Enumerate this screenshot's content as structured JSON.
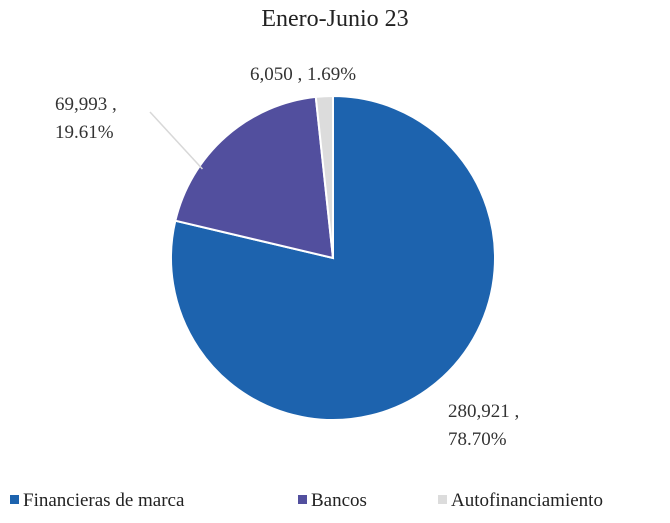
{
  "chart_data": {
    "type": "pie",
    "title": "Enero-Junio 23",
    "categories": [
      "Financieras de marca",
      "Bancos",
      "Autofinanciamiento"
    ],
    "values": [
      280921,
      69993,
      6050
    ],
    "value_labels": [
      "280,921 , 78.70%",
      "69,993 , 19.61%",
      "6,050 , 1.69%"
    ],
    "colors": [
      "#1d63ae",
      "#524f9e",
      "#dcdcdc"
    ],
    "legend": "bottom"
  }
}
